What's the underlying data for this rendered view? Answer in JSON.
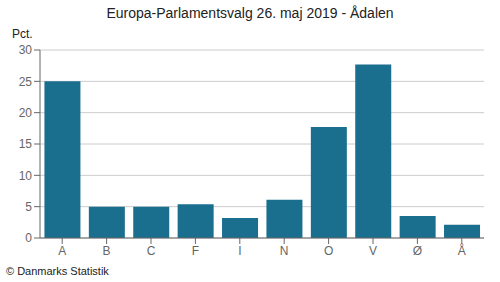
{
  "chart_data": {
    "type": "bar",
    "title": "Europa-Parlamentsvalg 26. maj 2019 - Ådalen",
    "ylabel": "Pct.",
    "categories": [
      "A",
      "B",
      "C",
      "F",
      "I",
      "N",
      "O",
      "V",
      "Ø",
      "Å"
    ],
    "values": [
      25.0,
      5.0,
      5.0,
      5.4,
      3.2,
      6.1,
      17.7,
      27.7,
      3.5,
      2.1
    ],
    "color": "#1a6e8e",
    "ylim": [
      0,
      30
    ],
    "yticks": [
      0,
      5,
      10,
      15,
      20,
      25,
      30
    ],
    "grid": true,
    "annotations": [
      "© Danmarks Statistik"
    ]
  }
}
